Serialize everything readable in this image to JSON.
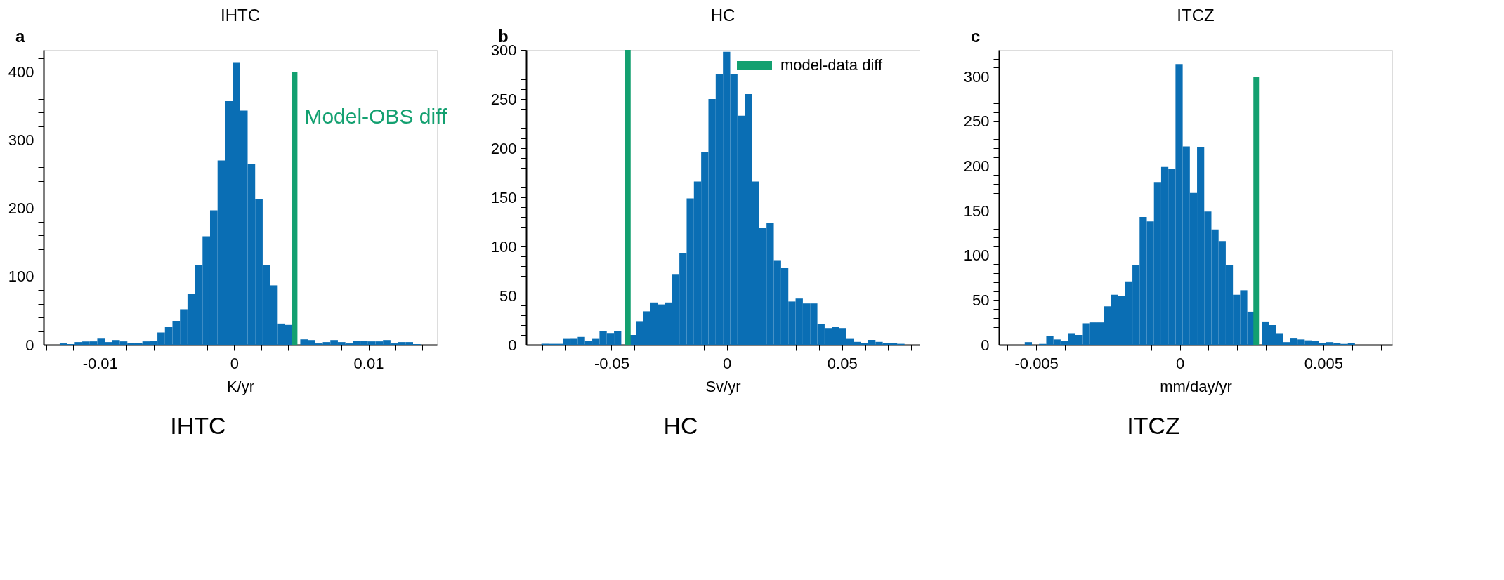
{
  "chart_data": [
    {
      "type": "histogram",
      "title": "IHTC",
      "xlabel": "K/yr",
      "annotations": [
        "a",
        "IHTC"
      ],
      "legend": false,
      "grid": false,
      "bins": [
        -0.013,
        -0.01244,
        -0.01188,
        -0.01132,
        -0.01076,
        -0.0102,
        -0.00964,
        -0.00908,
        -0.00852,
        -0.00796,
        -0.0074,
        -0.00684,
        -0.00628,
        -0.00572,
        -0.00516,
        -0.0046,
        -0.00404,
        -0.00348,
        -0.00292,
        -0.00236,
        -0.0018,
        -0.00124,
        -0.00068,
        -0.00012,
        0.00044,
        0.001,
        0.00156,
        0.00212,
        0.00268,
        0.00324,
        0.0038,
        0.00436,
        0.00492,
        0.00548,
        0.00604,
        0.0066,
        0.00716,
        0.00772,
        0.00828,
        0.00884,
        0.0094,
        0.00996,
        0.01052,
        0.01108,
        0.01164,
        0.0122,
        0.01276,
        0.01332,
        0.01388
      ],
      "series": [
        {
          "type": "histogram",
          "color": "#0a6eb4",
          "values": [
            2,
            1,
            4,
            5,
            5,
            9,
            4,
            7,
            5,
            2,
            3,
            5,
            6,
            18,
            26,
            35,
            52,
            75,
            117,
            159,
            197,
            270,
            357,
            413,
            343,
            265,
            214,
            117,
            87,
            31,
            29,
            null,
            8,
            7,
            2,
            4,
            7,
            4,
            2,
            6,
            6,
            5,
            5,
            7,
            2,
            4,
            4,
            1
          ]
        },
        {
          "type": "line",
          "name": "Model-OBS diff",
          "color": "#13a070",
          "x": [
            0.0045,
            0.0045
          ],
          "values": [
            0,
            400
          ]
        }
      ],
      "xlim": [
        -0.0142,
        0.0151
      ],
      "ylim": [
        0,
        432
      ],
      "xticks": [
        {
          "value": -0.014,
          "label": null
        },
        {
          "value": -0.012,
          "label": null
        },
        -0.01,
        {
          "value": -0.008,
          "label": null
        },
        {
          "value": -0.006,
          "label": null
        },
        {
          "value": -0.004,
          "label": null
        },
        {
          "value": -0.002,
          "label": null
        },
        0,
        {
          "value": 0.002,
          "label": null
        },
        {
          "value": 0.004,
          "label": null
        },
        {
          "value": 0.006,
          "label": null
        },
        {
          "value": 0.008,
          "label": null
        },
        0.01,
        {
          "value": 0.012,
          "label": null
        },
        {
          "value": 0.014,
          "label": null
        }
      ],
      "yticks": [
        0,
        {
          "value": 20,
          "label": null
        },
        {
          "value": 40,
          "label": null
        },
        {
          "value": 60,
          "label": null
        },
        {
          "value": 80,
          "label": null
        },
        100,
        {
          "value": 120,
          "label": null
        },
        {
          "value": 140,
          "label": null
        },
        {
          "value": 160,
          "label": null
        },
        {
          "value": 180,
          "label": null
        },
        200,
        {
          "value": 220,
          "label": null
        },
        {
          "value": 240,
          "label": null
        },
        {
          "value": 260,
          "label": null
        },
        {
          "value": 280,
          "label": null
        },
        300,
        {
          "value": 320,
          "label": null
        },
        {
          "value": 340,
          "label": null
        },
        {
          "value": 360,
          "label": null
        },
        {
          "value": 380,
          "label": null
        },
        400,
        {
          "value": 420,
          "label": null
        }
      ]
    },
    {
      "type": "histogram",
      "title": "HC",
      "xlabel": "Sv/yr",
      "annotations": [
        "b",
        "HC"
      ],
      "legend": "top right",
      "grid": false,
      "bins": [
        -0.0804,
        -0.07725,
        -0.0741,
        -0.07095,
        -0.0678,
        -0.06465,
        -0.0615,
        -0.05835,
        -0.0552,
        -0.05205,
        -0.0489,
        -0.04575,
        -0.0426,
        -0.03945,
        -0.0363,
        -0.03315,
        -0.03,
        -0.02685,
        -0.0237,
        -0.02055,
        -0.0174,
        -0.01425,
        -0.0111,
        -0.00795,
        -0.0048,
        -0.00165,
        0.0015,
        0.00465,
        0.0078,
        0.01095,
        0.0141,
        0.01725,
        0.0204,
        0.02355,
        0.0267,
        0.02985,
        0.033,
        0.03615,
        0.0393,
        0.04245,
        0.0456,
        0.04875,
        0.0519,
        0.05505,
        0.0582,
        0.06135,
        0.0645,
        0.06765,
        0.0708,
        0.07395,
        0.0771
      ],
      "series": [
        {
          "type": "histogram",
          "color": "#0a6eb4",
          "values": [
            1,
            1,
            1,
            6,
            6,
            8,
            4,
            6,
            14,
            12,
            14,
            null,
            10,
            24,
            34,
            43,
            41,
            43,
            72,
            93,
            149,
            166,
            196,
            250,
            275,
            298,
            275,
            233,
            255,
            166,
            119,
            124,
            86,
            78,
            44,
            47,
            42,
            42,
            21,
            17,
            18,
            17,
            6,
            3,
            2,
            5,
            3,
            2,
            2,
            1
          ]
        },
        {
          "type": "line",
          "name": "model-data diff",
          "color": "#13a070",
          "x": [
            -0.0429,
            -0.0429
          ],
          "values": [
            0,
            300
          ]
        }
      ],
      "xlim": [
        -0.087,
        0.0836
      ],
      "ylim": [
        0,
        300
      ],
      "xticks": [
        {
          "value": -0.08,
          "label": null
        },
        {
          "value": -0.07,
          "label": null
        },
        {
          "value": -0.06,
          "label": null
        },
        -0.05,
        {
          "value": -0.04,
          "label": null
        },
        {
          "value": -0.03,
          "label": null
        },
        {
          "value": -0.02,
          "label": null
        },
        {
          "value": -0.01,
          "label": null
        },
        0,
        {
          "value": 0.01,
          "label": null
        },
        {
          "value": 0.02,
          "label": null
        },
        {
          "value": 0.03,
          "label": null
        },
        {
          "value": 0.04,
          "label": null
        },
        0.05,
        {
          "value": 0.06,
          "label": null
        },
        {
          "value": 0.07,
          "label": null
        },
        {
          "value": 0.08,
          "label": null
        }
      ],
      "yticks": [
        0,
        {
          "value": 10,
          "label": null
        },
        {
          "value": 20,
          "label": null
        },
        {
          "value": 30,
          "label": null
        },
        {
          "value": 40,
          "label": null
        },
        50,
        {
          "value": 60,
          "label": null
        },
        {
          "value": 70,
          "label": null
        },
        {
          "value": 80,
          "label": null
        },
        {
          "value": 90,
          "label": null
        },
        100,
        {
          "value": 110,
          "label": null
        },
        {
          "value": 120,
          "label": null
        },
        {
          "value": 130,
          "label": null
        },
        {
          "value": 140,
          "label": null
        },
        150,
        {
          "value": 160,
          "label": null
        },
        {
          "value": 170,
          "label": null
        },
        {
          "value": 180,
          "label": null
        },
        {
          "value": 190,
          "label": null
        },
        200,
        {
          "value": 210,
          "label": null
        },
        {
          "value": 220,
          "label": null
        },
        {
          "value": 230,
          "label": null
        },
        {
          "value": 240,
          "label": null
        },
        250,
        {
          "value": 260,
          "label": null
        },
        {
          "value": 270,
          "label": null
        },
        {
          "value": 280,
          "label": null
        },
        {
          "value": 290,
          "label": null
        },
        300
      ]
    },
    {
      "type": "histogram",
      "title": "ITCZ",
      "xlabel": "mm/day/yr",
      "annotations": [
        "c",
        "ITCZ"
      ],
      "legend": false,
      "grid": false,
      "bins": [
        -0.0054,
        -0.00515,
        -0.0049,
        -0.00465,
        -0.0044,
        -0.00415,
        -0.0039,
        -0.00365,
        -0.0034,
        -0.00315,
        -0.0029,
        -0.00265,
        -0.0024,
        -0.00215,
        -0.0019,
        -0.00165,
        -0.0014,
        -0.00115,
        -0.0009,
        -0.00065,
        -0.0004,
        -0.00015,
        0.0001,
        0.00035,
        0.0006,
        0.00085,
        0.0011,
        0.00135,
        0.0016,
        0.00185,
        0.0021,
        0.00235,
        0.0026,
        0.00285,
        0.0031,
        0.00335,
        0.0036,
        0.00385,
        0.0041,
        0.00435,
        0.0046,
        0.00485,
        0.0051,
        0.00535,
        0.0056,
        0.00585,
        0.0061
      ],
      "series": [
        {
          "type": "histogram",
          "color": "#0a6eb4",
          "values": [
            3,
            0,
            1,
            10,
            6,
            4,
            13,
            11,
            24,
            25,
            25,
            43,
            56,
            55,
            71,
            89,
            143,
            138,
            182,
            199,
            197,
            314,
            222,
            170,
            221,
            149,
            129,
            116,
            89,
            56,
            61,
            37,
            null,
            26,
            22,
            13,
            3,
            7,
            6,
            5,
            4,
            2,
            3,
            2,
            1,
            2
          ]
        },
        {
          "type": "line",
          "color": "#13a070",
          "x": [
            0.00266,
            0.00266
          ],
          "values": [
            0,
            300
          ]
        }
      ],
      "xlim": [
        -0.0063,
        0.0074
      ],
      "ylim": [
        0,
        330
      ],
      "xticks": [
        {
          "value": -0.006,
          "label": null
        },
        -0.005,
        {
          "value": -0.004,
          "label": null
        },
        {
          "value": -0.003,
          "label": null
        },
        {
          "value": -0.002,
          "label": null
        },
        {
          "value": -0.001,
          "label": null
        },
        0,
        {
          "value": 0.001,
          "label": null
        },
        {
          "value": 0.002,
          "label": null
        },
        {
          "value": 0.003,
          "label": null
        },
        {
          "value": 0.004,
          "label": null
        },
        0.005,
        {
          "value": 0.006,
          "label": null
        },
        {
          "value": 0.007,
          "label": null
        }
      ],
      "yticks": [
        0,
        {
          "value": 10,
          "label": null
        },
        {
          "value": 20,
          "label": null
        },
        {
          "value": 30,
          "label": null
        },
        {
          "value": 40,
          "label": null
        },
        50,
        {
          "value": 60,
          "label": null
        },
        {
          "value": 70,
          "label": null
        },
        {
          "value": 80,
          "label": null
        },
        {
          "value": 90,
          "label": null
        },
        100,
        {
          "value": 110,
          "label": null
        },
        {
          "value": 120,
          "label": null
        },
        {
          "value": 130,
          "label": null
        },
        {
          "value": 140,
          "label": null
        },
        150,
        {
          "value": 160,
          "label": null
        },
        {
          "value": 170,
          "label": null
        },
        {
          "value": 180,
          "label": null
        },
        {
          "value": 190,
          "label": null
        },
        200,
        {
          "value": 210,
          "label": null
        },
        {
          "value": 220,
          "label": null
        },
        {
          "value": 230,
          "label": null
        },
        {
          "value": 240,
          "label": null
        },
        250,
        {
          "value": 260,
          "label": null
        },
        {
          "value": 270,
          "label": null
        },
        {
          "value": 280,
          "label": null
        },
        {
          "value": 290,
          "label": null
        },
        300,
        {
          "value": 310,
          "label": null
        },
        {
          "value": 320,
          "label": null
        }
      ]
    }
  ]
}
